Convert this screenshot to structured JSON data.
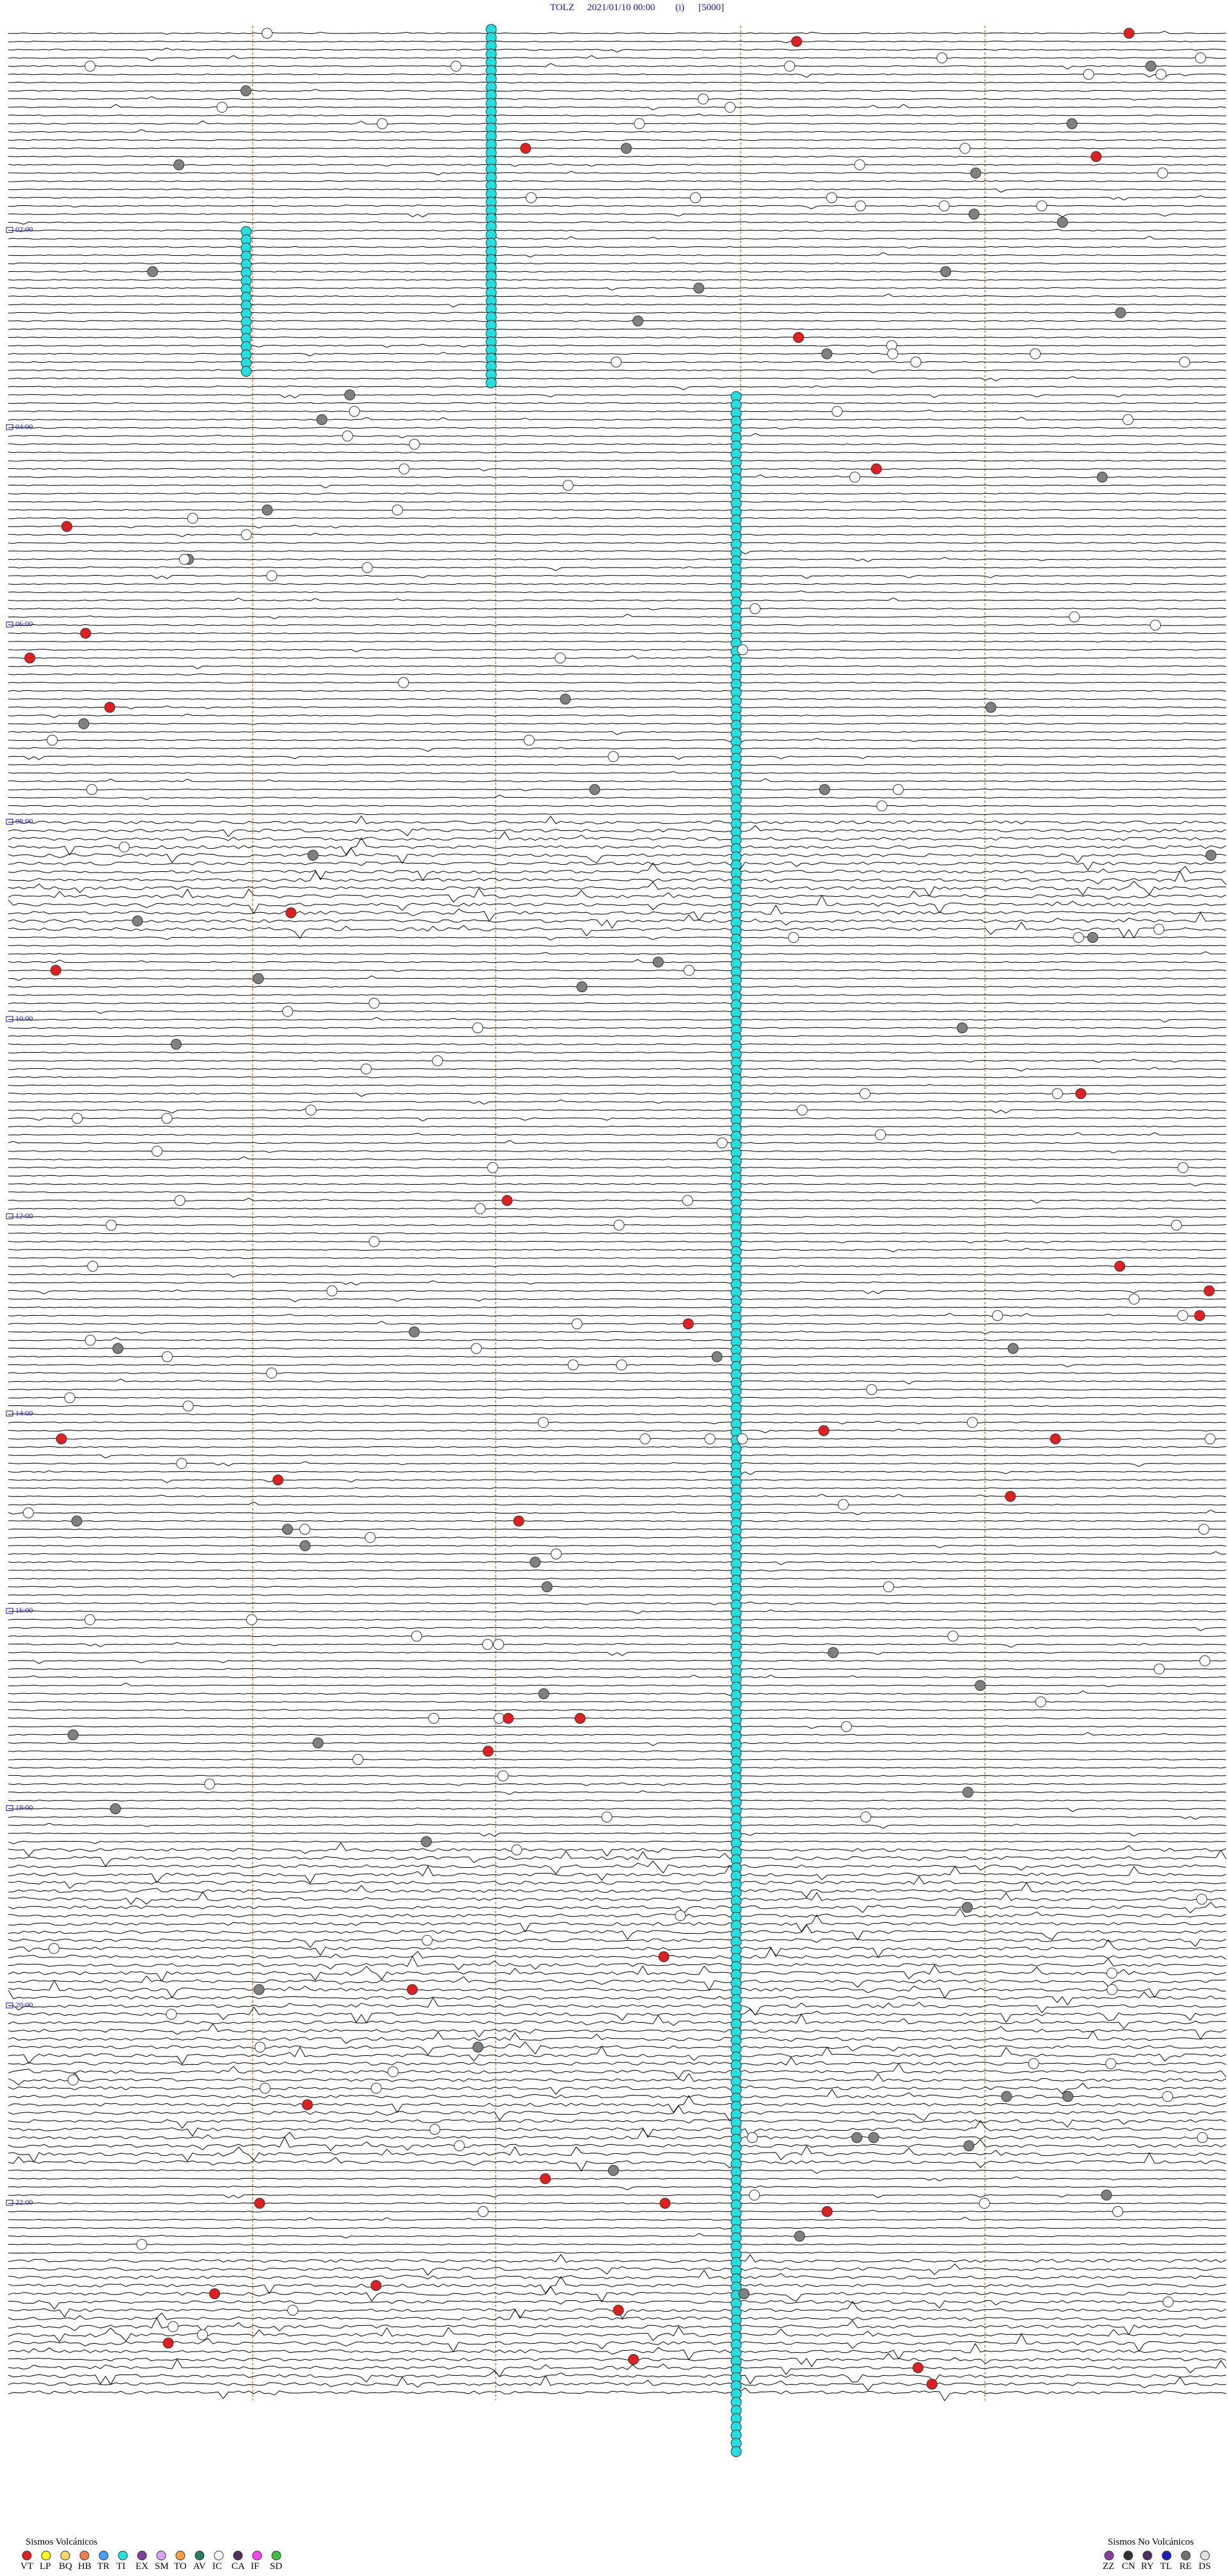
{
  "header": {
    "station": "TOLZ",
    "datetime": "2021/01/10 00:00",
    "mode": "(i)",
    "scale": "[5000]"
  },
  "hour_labels": [
    "02:00",
    "04:00",
    "06:00",
    "08:00",
    "10:00",
    "12:00",
    "14:00",
    "16:00",
    "18:00",
    "20:00",
    "22:00"
  ],
  "legend_volcanic": {
    "title": "Sismos Volcánicos",
    "items": [
      {
        "code": "VT",
        "color": "#e02020"
      },
      {
        "code": "LP",
        "color": "#ffff20"
      },
      {
        "code": "BQ",
        "color": "#ffd860"
      },
      {
        "code": "HB",
        "color": "#f08040"
      },
      {
        "code": "TR",
        "color": "#40a0ff"
      },
      {
        "code": "TI",
        "color": "#20e0e0"
      },
      {
        "code": "EX",
        "color": "#8040a0"
      },
      {
        "code": "SM",
        "color": "#e0a0ff"
      },
      {
        "code": "TO",
        "color": "#ffa040"
      },
      {
        "code": "AV",
        "color": "#208060"
      },
      {
        "code": "IC",
        "color": "#ffffff"
      },
      {
        "code": "CA",
        "color": "#503060"
      },
      {
        "code": "IF",
        "color": "#ff40ff"
      },
      {
        "code": "SD",
        "color": "#40c040"
      }
    ]
  },
  "legend_non_volcanic": {
    "title": "Sismos No Volcánicos",
    "items": [
      {
        "code": "ZZ",
        "color": "#8040a0"
      },
      {
        "code": "CN",
        "color": "#303030"
      },
      {
        "code": "RY",
        "color": "#503060"
      },
      {
        "code": "TL",
        "color": "#2020c0"
      },
      {
        "code": "RE",
        "color": "#707070"
      },
      {
        "code": "DS",
        "color": "#e0e0e0"
      }
    ]
  }
}
